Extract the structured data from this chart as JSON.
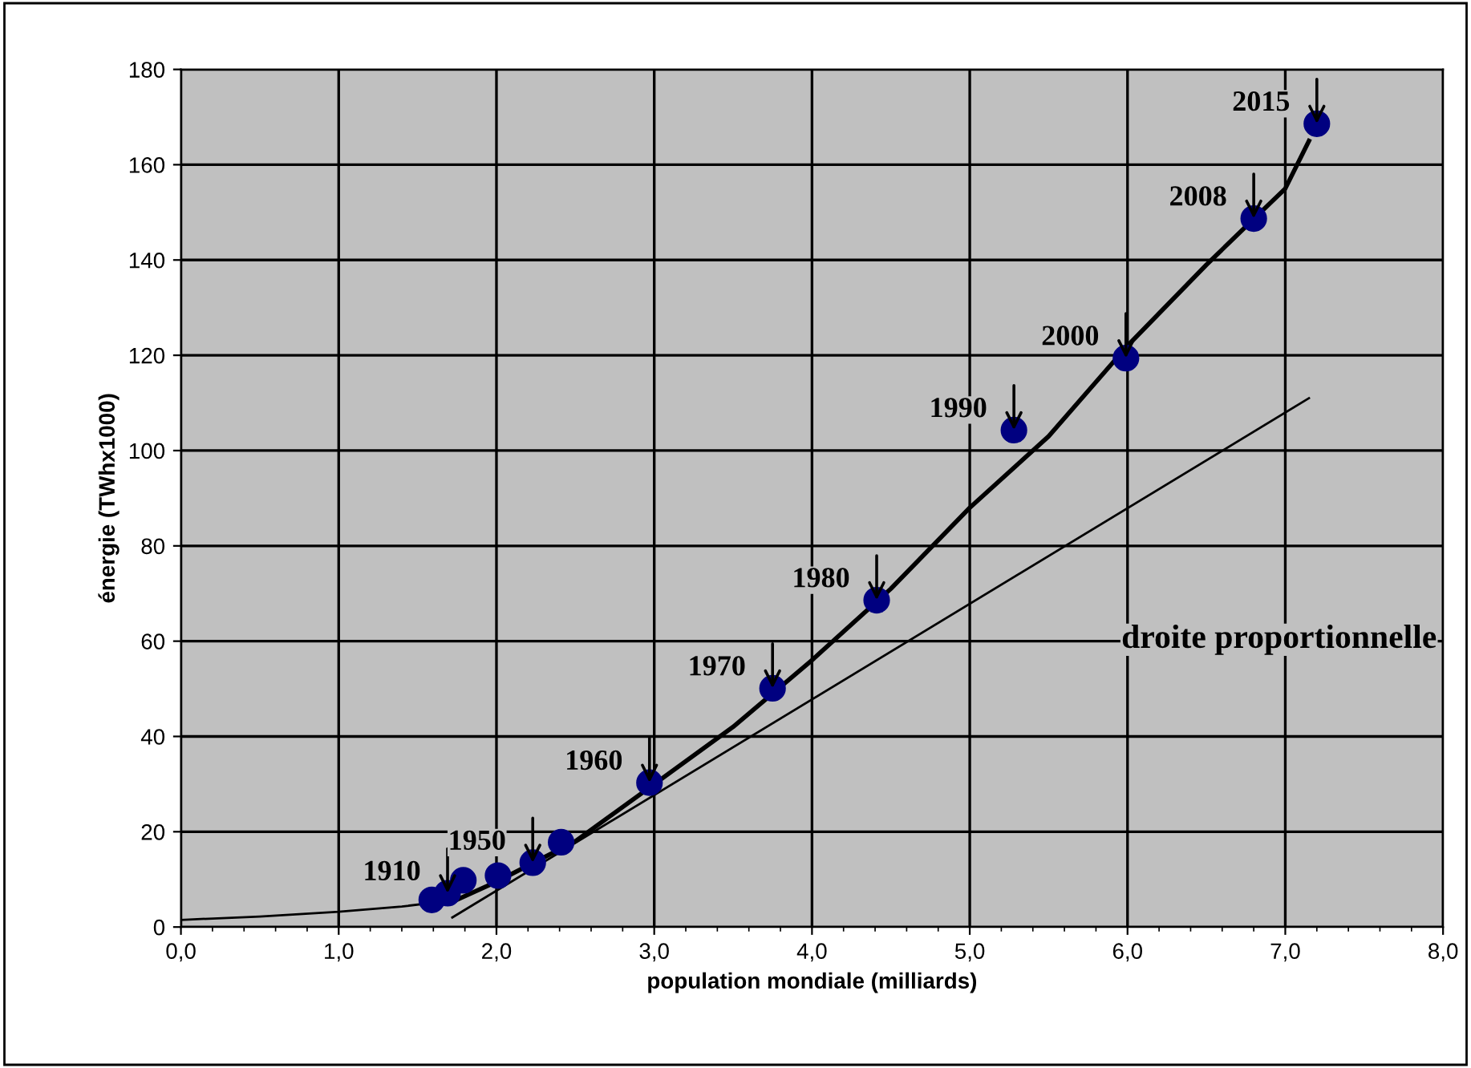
{
  "chart_data": {
    "type": "scatter",
    "xlabel": "population mondiale (milliards)",
    "ylabel": "énergie (TWhx1000)",
    "xlim": [
      0,
      8
    ],
    "ylim": [
      0,
      180
    ],
    "xticks": [
      {
        "value": 0,
        "label": "0,0"
      },
      {
        "value": 1,
        "label": "1,0"
      },
      {
        "value": 2,
        "label": "2,0"
      },
      {
        "value": 3,
        "label": "3,0"
      },
      {
        "value": 4,
        "label": "4,0"
      },
      {
        "value": 5,
        "label": "5,0"
      },
      {
        "value": 6,
        "label": "6,0"
      },
      {
        "value": 7,
        "label": "7,0"
      },
      {
        "value": 8,
        "label": "8,0"
      }
    ],
    "yticks": [
      0,
      20,
      40,
      60,
      80,
      100,
      120,
      140,
      160,
      180
    ],
    "grid": true,
    "legend": false,
    "series": [
      {
        "marker": "circle",
        "color": "#000080",
        "x": [
          1.59,
          1.69,
          1.79,
          2.01,
          2.23,
          2.41,
          2.97,
          3.75,
          4.41,
          5.28,
          5.99,
          6.8,
          7.2
        ],
        "values": [
          5.7,
          7.1,
          9.8,
          10.8,
          13.5,
          17.8,
          30.3,
          50.1,
          68.6,
          104.3,
          119.4,
          148.7,
          168.6
        ]
      },
      {
        "type": "line",
        "color": "#000000",
        "line_style": "solid",
        "x": [
          1.7,
          2.0,
          2.5,
          3.0,
          3.5,
          4.0,
          4.5,
          5.0,
          5.5,
          6.0,
          6.5,
          7.0,
          7.15
        ],
        "values": [
          5,
          9.5,
          18,
          30,
          42,
          56,
          71,
          88,
          103,
          122,
          139,
          155,
          165
        ]
      },
      {
        "type": "line",
        "color": "#000000",
        "line_style": "solid",
        "x": [
          0,
          0.5,
          1.0,
          1.4,
          1.7
        ],
        "values": [
          1.5,
          2.2,
          3.2,
          4.3,
          5.5
        ]
      },
      {
        "type": "line",
        "color": "#000000",
        "line_style": "solid",
        "x": [
          1.72,
          7.15
        ],
        "values": [
          2,
          111
        ]
      }
    ],
    "annotations": [
      {
        "text": "1910",
        "x": 1.69,
        "y": 7.1
      },
      {
        "text": "1950",
        "x": 2.23,
        "y": 13.5
      },
      {
        "text": "1960",
        "x": 2.97,
        "y": 30.3
      },
      {
        "text": "1970",
        "x": 3.75,
        "y": 50.1
      },
      {
        "text": "1980",
        "x": 4.41,
        "y": 68.6
      },
      {
        "text": "1990",
        "x": 5.28,
        "y": 104.3
      },
      {
        "text": "2000",
        "x": 5.99,
        "y": 119.4
      },
      {
        "text": "2008",
        "x": 6.8,
        "y": 148.7
      },
      {
        "text": "2015",
        "x": 7.2,
        "y": 168.6
      },
      "droite proportionnelle"
    ]
  }
}
